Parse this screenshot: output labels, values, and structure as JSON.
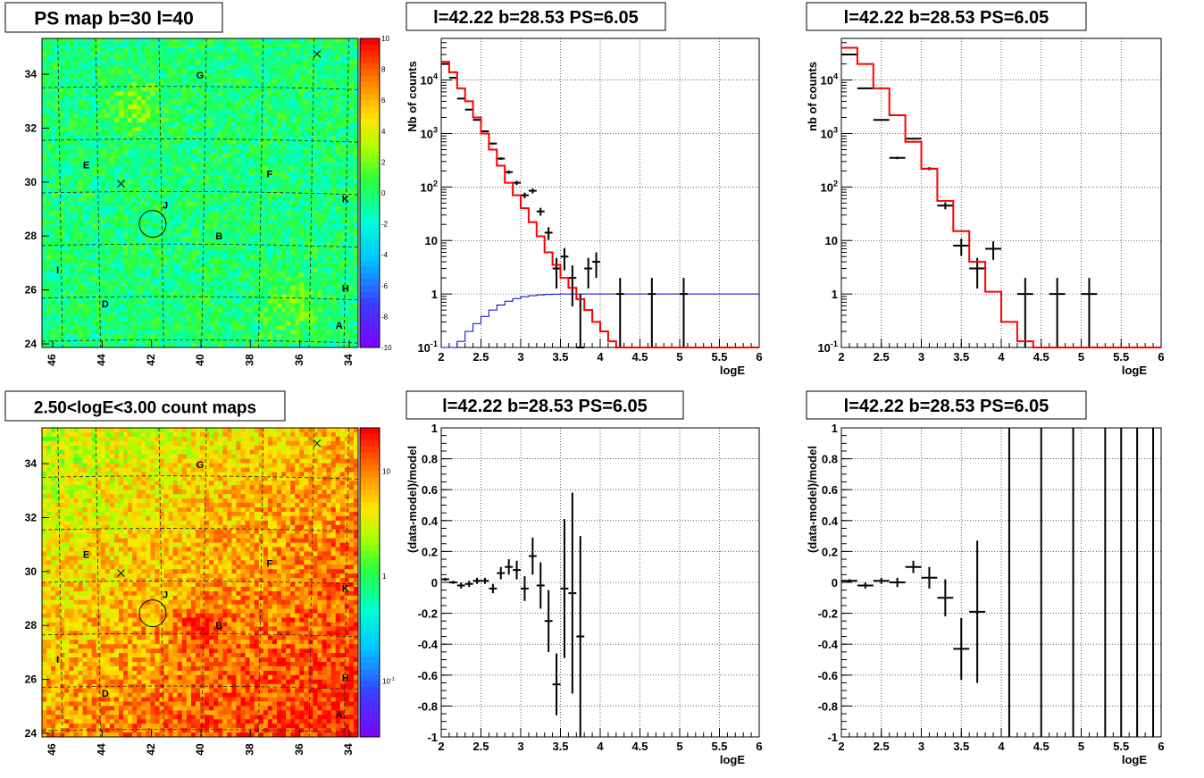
{
  "chart_data": [
    {
      "type": "heatmap",
      "title": "PS map b=30 l=40",
      "xticks": [
        "46",
        "44",
        "42",
        "40",
        "38",
        "36",
        "34"
      ],
      "yticks": [
        "24",
        "26",
        "28",
        "30",
        "32",
        "34"
      ],
      "colorbar_ticks": [
        "10",
        "8",
        "6",
        "4",
        "2",
        "0",
        "-2",
        "-4",
        "-6",
        "-8",
        "-10"
      ],
      "zlim": [
        -10,
        10
      ],
      "source_labels": [
        "G",
        "E",
        "F",
        "J",
        "K",
        "B",
        "I",
        "H",
        "D",
        "A"
      ],
      "cross_markers": 2,
      "circle": "J",
      "palette": "rainbow"
    },
    {
      "type": "line",
      "title": "l=42.22 b=28.53 PS=6.05",
      "xlabel": "logE",
      "ylabel": "Nb of counts",
      "ylog": true,
      "xlim": [
        2,
        6
      ],
      "ylim": [
        0.1,
        60000
      ],
      "xticks": [
        "2",
        "2.5",
        "3",
        "3.5",
        "4",
        "4.5",
        "5",
        "5.5",
        "6"
      ],
      "yticks": [
        "10^{-1}",
        "1",
        "10",
        "10^{2}",
        "10^{3}",
        "10^{4}"
      ],
      "grid": true,
      "data_points": [
        {
          "x": 2.05,
          "y": 20000
        },
        {
          "x": 2.15,
          "y": 11000
        },
        {
          "x": 2.25,
          "y": 4500
        },
        {
          "x": 2.35,
          "y": 2800
        },
        {
          "x": 2.45,
          "y": 1800
        },
        {
          "x": 2.55,
          "y": 1100
        },
        {
          "x": 2.65,
          "y": 650
        },
        {
          "x": 2.75,
          "y": 340
        },
        {
          "x": 2.85,
          "y": 190
        },
        {
          "x": 2.95,
          "y": 120
        },
        {
          "x": 3.05,
          "y": 70
        },
        {
          "x": 3.15,
          "y": 85
        },
        {
          "x": 3.25,
          "y": 35
        },
        {
          "x": 3.35,
          "y": 14
        },
        {
          "x": 3.45,
          "y": 3
        },
        {
          "x": 3.55,
          "y": 5
        },
        {
          "x": 3.65,
          "y": 2
        },
        {
          "x": 3.75,
          "y": 0.1
        },
        {
          "x": 3.85,
          "y": 3
        },
        {
          "x": 3.95,
          "y": 4
        },
        {
          "x": 4.25,
          "y": 1
        },
        {
          "x": 4.65,
          "y": 1
        },
        {
          "x": 5.05,
          "y": 1
        }
      ],
      "model_red": [
        {
          "x0": 2.0,
          "x1": 2.1,
          "y": 22000
        },
        {
          "x0": 2.1,
          "x1": 2.2,
          "y": 14000
        },
        {
          "x0": 2.2,
          "x1": 2.3,
          "y": 7000
        },
        {
          "x0": 2.3,
          "x1": 2.4,
          "y": 4000
        },
        {
          "x0": 2.4,
          "x1": 2.5,
          "y": 2000
        },
        {
          "x0": 2.5,
          "x1": 2.6,
          "y": 1000
        },
        {
          "x0": 2.6,
          "x1": 2.7,
          "y": 500
        },
        {
          "x0": 2.7,
          "x1": 2.8,
          "y": 250
        },
        {
          "x0": 2.8,
          "x1": 2.9,
          "y": 120
        },
        {
          "x0": 2.9,
          "x1": 3.0,
          "y": 70
        },
        {
          "x0": 3.0,
          "x1": 3.1,
          "y": 40
        },
        {
          "x0": 3.1,
          "x1": 3.2,
          "y": 22
        },
        {
          "x0": 3.2,
          "x1": 3.3,
          "y": 12
        },
        {
          "x0": 3.3,
          "x1": 3.4,
          "y": 6
        },
        {
          "x0": 3.4,
          "x1": 3.5,
          "y": 3.5
        },
        {
          "x0": 3.5,
          "x1": 3.6,
          "y": 2
        },
        {
          "x0": 3.6,
          "x1": 3.7,
          "y": 1.3
        },
        {
          "x0": 3.7,
          "x1": 3.8,
          "y": 0.8
        },
        {
          "x0": 3.8,
          "x1": 3.9,
          "y": 0.5
        },
        {
          "x0": 3.9,
          "x1": 4.0,
          "y": 0.3
        },
        {
          "x0": 4.0,
          "x1": 4.1,
          "y": 0.2
        },
        {
          "x0": 4.1,
          "x1": 4.2,
          "y": 0.13
        },
        {
          "x0": 4.2,
          "x1": 6.0,
          "y": 0.1
        }
      ],
      "model_blue": [
        {
          "x0": 2.0,
          "x1": 2.1,
          "y": 0.05
        },
        {
          "x0": 2.1,
          "x1": 2.2,
          "y": 0.08
        },
        {
          "x0": 2.2,
          "x1": 2.3,
          "y": 0.13
        },
        {
          "x0": 2.3,
          "x1": 2.4,
          "y": 0.2
        },
        {
          "x0": 2.4,
          "x1": 2.5,
          "y": 0.28
        },
        {
          "x0": 2.5,
          "x1": 2.6,
          "y": 0.38
        },
        {
          "x0": 2.6,
          "x1": 2.7,
          "y": 0.5
        },
        {
          "x0": 2.7,
          "x1": 2.8,
          "y": 0.62
        },
        {
          "x0": 2.8,
          "x1": 2.9,
          "y": 0.73
        },
        {
          "x0": 2.9,
          "x1": 3.0,
          "y": 0.82
        },
        {
          "x0": 3.0,
          "x1": 3.1,
          "y": 0.89
        },
        {
          "x0": 3.1,
          "x1": 3.2,
          "y": 0.93
        },
        {
          "x0": 3.2,
          "x1": 3.3,
          "y": 0.96
        },
        {
          "x0": 3.3,
          "x1": 3.4,
          "y": 0.98
        },
        {
          "x0": 3.4,
          "x1": 3.5,
          "y": 0.99
        },
        {
          "x0": 3.5,
          "x1": 6.0,
          "y": 1.0
        }
      ]
    },
    {
      "type": "line",
      "title": "l=42.22 b=28.53 PS=6.05",
      "xlabel": "logE",
      "ylabel": "nb of counts",
      "ylog": true,
      "xlim": [
        2,
        6
      ],
      "ylim": [
        0.1,
        60000
      ],
      "xticks": [
        "2",
        "2.5",
        "3",
        "3.5",
        "4",
        "4.5",
        "5",
        "5.5",
        "6"
      ],
      "yticks": [
        "10^{-1}",
        "1",
        "10",
        "10^{2}",
        "10^{3}",
        "10^{4}"
      ],
      "grid": true,
      "data_points": [
        {
          "x": 2.1,
          "y": 30000
        },
        {
          "x": 2.3,
          "y": 7000
        },
        {
          "x": 2.5,
          "y": 1800
        },
        {
          "x": 2.7,
          "y": 350
        },
        {
          "x": 2.9,
          "y": 800
        },
        {
          "x": 3.1,
          "y": 220
        },
        {
          "x": 3.3,
          "y": 45
        },
        {
          "x": 3.5,
          "y": 8
        },
        {
          "x": 3.7,
          "y": 3
        },
        {
          "x": 3.9,
          "y": 7
        },
        {
          "x": 4.3,
          "y": 1
        },
        {
          "x": 4.7,
          "y": 1
        },
        {
          "x": 5.1,
          "y": 1
        }
      ],
      "model_red": [
        {
          "x0": 2.0,
          "x1": 2.2,
          "y": 40000
        },
        {
          "x0": 2.2,
          "x1": 2.4,
          "y": 20000
        },
        {
          "x0": 2.4,
          "x1": 2.6,
          "y": 7000
        },
        {
          "x0": 2.6,
          "x1": 2.8,
          "y": 2200
        },
        {
          "x0": 2.8,
          "x1": 3.0,
          "y": 700
        },
        {
          "x0": 3.0,
          "x1": 3.2,
          "y": 220
        },
        {
          "x0": 3.2,
          "x1": 3.4,
          "y": 55
        },
        {
          "x0": 3.4,
          "x1": 3.6,
          "y": 15
        },
        {
          "x0": 3.6,
          "x1": 3.8,
          "y": 4
        },
        {
          "x0": 3.8,
          "x1": 4.0,
          "y": 1.1
        },
        {
          "x0": 4.0,
          "x1": 4.2,
          "y": 0.3
        },
        {
          "x0": 4.2,
          "x1": 4.4,
          "y": 0.13
        },
        {
          "x0": 4.4,
          "x1": 6.0,
          "y": 0.1
        }
      ]
    },
    {
      "type": "heatmap",
      "title": "2.50<logE<3.00 count maps",
      "xticks": [
        "46",
        "44",
        "42",
        "40",
        "38",
        "36",
        "34"
      ],
      "yticks": [
        "24",
        "26",
        "28",
        "30",
        "32",
        "34"
      ],
      "colorbar_ticks": [
        "10",
        "1",
        "10^{-1}"
      ],
      "colorbar_log": true,
      "source_labels": [
        "G",
        "E",
        "F",
        "J",
        "K",
        "B",
        "I",
        "H",
        "D",
        "A"
      ],
      "cross_markers": 2,
      "circle": "J",
      "palette": "rainbow"
    },
    {
      "type": "scatter",
      "title": "l=42.22 b=28.53 PS=6.05",
      "xlabel": "logE",
      "ylabel": "(data-model)/model",
      "xlim": [
        2,
        6
      ],
      "ylim": [
        -1,
        1
      ],
      "xticks": [
        "2",
        "2.5",
        "3",
        "3.5",
        "4",
        "4.5",
        "5",
        "5.5",
        "6"
      ],
      "yticks": [
        "-1",
        "-0.8",
        "-0.6",
        "-0.4",
        "-0.2",
        "0",
        "0.2",
        "0.4",
        "0.6",
        "0.8",
        "1"
      ],
      "grid": true,
      "points": [
        {
          "x": 2.05,
          "y": 0.02,
          "err": 0.01
        },
        {
          "x": 2.15,
          "y": 0.0,
          "err": 0.01
        },
        {
          "x": 2.25,
          "y": -0.02,
          "err": 0.02
        },
        {
          "x": 2.35,
          "y": -0.01,
          "err": 0.02
        },
        {
          "x": 2.45,
          "y": 0.01,
          "err": 0.02
        },
        {
          "x": 2.55,
          "y": 0.01,
          "err": 0.02
        },
        {
          "x": 2.65,
          "y": -0.04,
          "err": 0.03
        },
        {
          "x": 2.75,
          "y": 0.06,
          "err": 0.04
        },
        {
          "x": 2.85,
          "y": 0.1,
          "err": 0.05
        },
        {
          "x": 2.95,
          "y": 0.08,
          "err": 0.06
        },
        {
          "x": 3.05,
          "y": -0.04,
          "err": 0.08
        },
        {
          "x": 3.15,
          "y": 0.17,
          "err": 0.12
        },
        {
          "x": 3.25,
          "y": -0.02,
          "err": 0.15
        },
        {
          "x": 3.35,
          "y": -0.25,
          "err": 0.2
        },
        {
          "x": 3.45,
          "y": -0.66,
          "err": 0.2
        },
        {
          "x": 3.55,
          "y": -0.04,
          "err": 0.45
        },
        {
          "x": 3.65,
          "y": -0.07,
          "err": 0.65
        },
        {
          "x": 3.75,
          "y": -0.35,
          "err": 0.65
        }
      ]
    },
    {
      "type": "scatter",
      "title": "l=42.22 b=28.53 PS=6.05",
      "xlabel": "logE",
      "ylabel": "(data-model)/model",
      "xlim": [
        2,
        6
      ],
      "ylim": [
        -1,
        1
      ],
      "xticks": [
        "2",
        "2.5",
        "3",
        "3.5",
        "4",
        "4.5",
        "5",
        "5.5",
        "6"
      ],
      "yticks": [
        "-1",
        "-0.8",
        "-0.6",
        "-0.4",
        "-0.2",
        "0",
        "0.2",
        "0.4",
        "0.6",
        "0.8",
        "1"
      ],
      "grid": true,
      "points": [
        {
          "x": 2.1,
          "y": 0.01,
          "err": 0.01
        },
        {
          "x": 2.3,
          "y": -0.02,
          "err": 0.02
        },
        {
          "x": 2.5,
          "y": 0.01,
          "err": 0.02
        },
        {
          "x": 2.7,
          "y": 0.0,
          "err": 0.03
        },
        {
          "x": 2.9,
          "y": 0.1,
          "err": 0.04
        },
        {
          "x": 3.1,
          "y": 0.03,
          "err": 0.07
        },
        {
          "x": 3.3,
          "y": -0.1,
          "err": 0.12
        },
        {
          "x": 3.5,
          "y": -0.43,
          "err": 0.2
        },
        {
          "x": 3.7,
          "y": -0.19,
          "err": 0.46
        }
      ],
      "full_error_bars_x": [
        4.1,
        4.5,
        4.9,
        5.3,
        5.5,
        5.7,
        5.9
      ]
    }
  ]
}
